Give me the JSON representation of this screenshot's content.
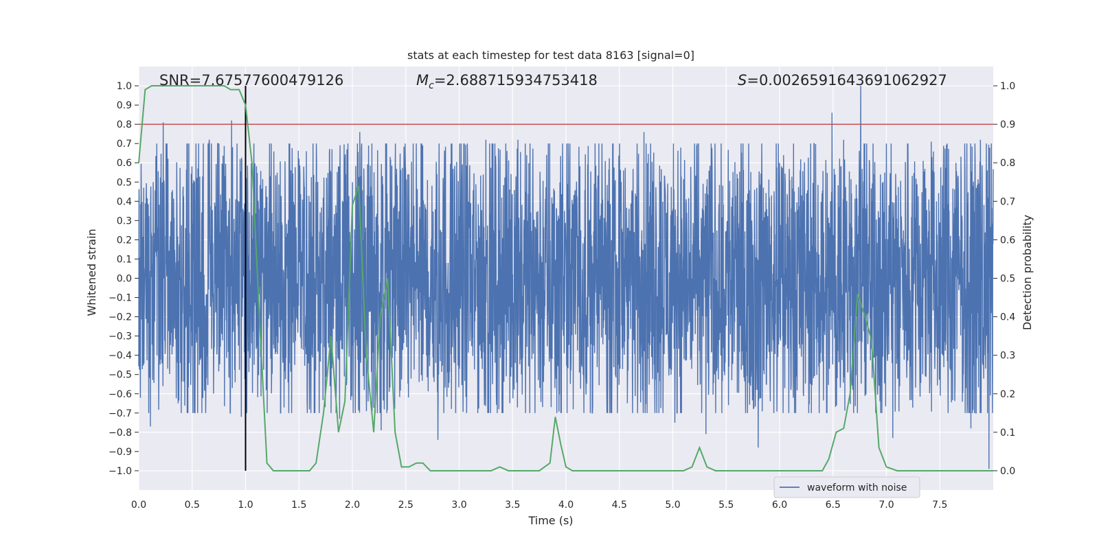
{
  "chart_data": {
    "type": "line",
    "title": "stats at each timestep for test data 8163 [signal=0]",
    "xlabel": "Time (s)",
    "ylabel": "Whitened strain",
    "y2label": "Detection probability",
    "xlim": [
      0,
      8
    ],
    "ylim": [
      -1.1,
      1.1
    ],
    "y2lim": [
      -0.05,
      1.05
    ],
    "grid": true,
    "legend_placement": "lower-right",
    "xticks": [
      "0.0",
      "0.5",
      "1.0",
      "1.5",
      "2.0",
      "2.5",
      "3.0",
      "3.5",
      "4.0",
      "4.5",
      "5.0",
      "5.5",
      "6.0",
      "6.5",
      "7.0",
      "7.5"
    ],
    "yticks": [
      "1.0",
      "0.9",
      "0.8",
      "0.7",
      "0.6",
      "0.5",
      "0.4",
      "0.3",
      "0.2",
      "0.1",
      "0.0",
      "−0.1",
      "−0.2",
      "−0.3",
      "−0.4",
      "−0.5",
      "−0.6",
      "−0.7",
      "−0.8",
      "−0.9",
      "−1.0"
    ],
    "y2ticks": [
      "1.0",
      "0.9",
      "0.8",
      "0.7",
      "0.6",
      "0.5",
      "0.4",
      "0.3",
      "0.2",
      "0.1",
      "0.0"
    ],
    "annotations": {
      "snr": "SNR=7.67577600479126",
      "mc_label": "M",
      "mc_sub": "c",
      "mc_value": "=2.688715934753418",
      "s_label": "S",
      "s_value": "=0.0026591643691062927"
    },
    "threshold": {
      "y2": 0.9,
      "color": "#c44e52"
    },
    "marker_line": {
      "x": 1.0,
      "y_from": -1.0,
      "y_to": 1.0,
      "color": "#000000"
    },
    "series": [
      {
        "name": "waveform with noise",
        "color": "#4c72b0",
        "envelope_typical": 0.42,
        "peaks": [
          {
            "x": 0.23,
            "y": 0.81
          },
          {
            "x": 0.87,
            "y": 0.82
          },
          {
            "x": 0.95,
            "y": 0.62
          },
          {
            "x": 0.56,
            "y": 0.7
          },
          {
            "x": 0.66,
            "y": 0.72
          },
          {
            "x": 1.57,
            "y": 0.66
          },
          {
            "x": 2.07,
            "y": 0.76
          },
          {
            "x": 1.95,
            "y": 0.67
          },
          {
            "x": 3.25,
            "y": 0.72
          },
          {
            "x": 3.55,
            "y": 0.72
          },
          {
            "x": 4.73,
            "y": 0.76
          },
          {
            "x": 6.49,
            "y": 0.86
          },
          {
            "x": 6.76,
            "y": 1.0
          },
          {
            "x": 6.6,
            "y": 0.72
          },
          {
            "x": 7.42,
            "y": 0.71
          },
          {
            "x": 7.88,
            "y": 0.72
          },
          {
            "x": 7.65,
            "y": 0.6
          }
        ],
        "troughs": [
          {
            "x": 0.11,
            "y": -0.77
          },
          {
            "x": 0.96,
            "y": -0.72
          },
          {
            "x": 1.88,
            "y": -0.73
          },
          {
            "x": 2.27,
            "y": -0.79
          },
          {
            "x": 2.8,
            "y": -0.84
          },
          {
            "x": 5.02,
            "y": -0.75
          },
          {
            "x": 5.31,
            "y": -0.81
          },
          {
            "x": 5.8,
            "y": -0.88
          },
          {
            "x": 7.06,
            "y": -0.83
          },
          {
            "x": 7.79,
            "y": -0.78
          },
          {
            "x": 7.96,
            "y": -0.99
          },
          {
            "x": 0.37,
            "y": -0.65
          }
        ]
      },
      {
        "name": "",
        "color": "#55a868",
        "axis": "right",
        "x": [
          0.0,
          0.06,
          0.12,
          0.2,
          0.3,
          0.4,
          0.5,
          0.6,
          0.7,
          0.8,
          0.86,
          0.94,
          1.0,
          1.06,
          1.13,
          1.2,
          1.26,
          1.33,
          1.4,
          1.5,
          1.6,
          1.66,
          1.73,
          1.8,
          1.87,
          1.93,
          2.0,
          2.06,
          2.13,
          2.2,
          2.26,
          2.33,
          2.4,
          2.46,
          2.53,
          2.6,
          2.66,
          2.73,
          2.8,
          2.9,
          3.0,
          3.1,
          3.2,
          3.3,
          3.38,
          3.46,
          3.55,
          3.65,
          3.75,
          3.85,
          3.9,
          3.95,
          4.0,
          4.06,
          4.13,
          4.2,
          4.3,
          4.4,
          4.5,
          4.6,
          4.7,
          4.8,
          4.9,
          5.0,
          5.1,
          5.18,
          5.25,
          5.32,
          5.4,
          5.5,
          5.6,
          5.7,
          5.8,
          5.9,
          6.0,
          6.1,
          6.2,
          6.3,
          6.4,
          6.46,
          6.53,
          6.6,
          6.66,
          6.73,
          6.8,
          6.86,
          6.93,
          7.0,
          7.1,
          7.2,
          7.3,
          7.4,
          7.5,
          7.6,
          7.7,
          7.8,
          7.9,
          8.0
        ],
        "y": [
          0.8,
          0.99,
          1.0,
          1.0,
          1.0,
          1.0,
          1.0,
          1.0,
          1.0,
          1.0,
          0.99,
          0.99,
          0.95,
          0.8,
          0.4,
          0.02,
          0.0,
          0.0,
          0.0,
          0.0,
          0.0,
          0.02,
          0.15,
          0.35,
          0.1,
          0.18,
          0.69,
          0.74,
          0.3,
          0.1,
          0.4,
          0.5,
          0.1,
          0.01,
          0.01,
          0.02,
          0.02,
          0.0,
          0.0,
          0.0,
          0.0,
          0.0,
          0.0,
          0.0,
          0.01,
          0.0,
          0.0,
          0.0,
          0.0,
          0.02,
          0.14,
          0.07,
          0.01,
          0.0,
          0.0,
          0.0,
          0.0,
          0.0,
          0.0,
          0.0,
          0.0,
          0.0,
          0.0,
          0.0,
          0.0,
          0.01,
          0.06,
          0.01,
          0.0,
          0.0,
          0.0,
          0.0,
          0.0,
          0.0,
          0.0,
          0.0,
          0.0,
          0.0,
          0.0,
          0.03,
          0.1,
          0.11,
          0.2,
          0.46,
          0.4,
          0.34,
          0.06,
          0.01,
          0.0,
          0.0,
          0.0,
          0.0,
          0.0,
          0.0,
          0.0,
          0.0,
          0.0,
          0.0
        ]
      }
    ]
  }
}
